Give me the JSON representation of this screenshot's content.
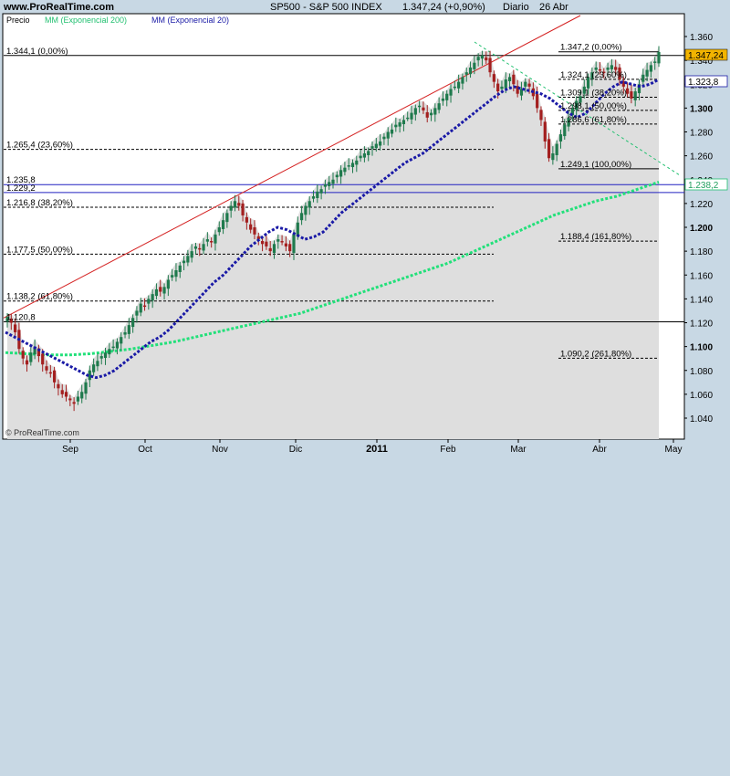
{
  "header": {
    "site": "www.ProRealTime.com",
    "instrument": "SP500 - S&P 500 INDEX",
    "quote": "1.347,24 (+0,90%)",
    "period": "Diario",
    "date": "26 Abr"
  },
  "legend": {
    "price_label": "Precio",
    "ema200_label": "MM (Exponencial 200)",
    "ema20_label": "MM (Exponencial 20)"
  },
  "watermark": "© ProRealTime.com",
  "colors": {
    "up_candle": "#1f7a4d",
    "down_candle": "#a31f1f",
    "ema20": "#1a1aa6",
    "ema200": "#22e07a",
    "trendline": "#d42020",
    "area": "#dedede",
    "page_bg": "#c8d8e4",
    "price_tag_bg": "#f2b400"
  },
  "chart_data": {
    "type": "candlestick",
    "title": "SP500 - S&P 500 INDEX",
    "ylim": [
      1030,
      1370
    ],
    "x_ticks": [
      "Sep",
      "Oct",
      "Nov",
      "Dic",
      "2011",
      "Feb",
      "Mar",
      "Abr",
      "May"
    ],
    "y_ticks": [
      "1.040",
      "1.060",
      "1.080",
      "1.100",
      "1.120",
      "1.140",
      "1.160",
      "1.180",
      "1.200",
      "1.220",
      "1.240",
      "1.260",
      "1.280",
      "1.300",
      "1.320",
      "1.340",
      "1.360"
    ],
    "last_price": 1347.24,
    "last_price_label": "1.347,24",
    "ema20_last_label": "1.323,8",
    "ema200_last_label": "1.238,2",
    "close_series": [
      1125,
      1120,
      1112,
      1098,
      1090,
      1085,
      1095,
      1100,
      1092,
      1085,
      1080,
      1078,
      1070,
      1065,
      1060,
      1058,
      1055,
      1052,
      1058,
      1062,
      1070,
      1080,
      1085,
      1088,
      1092,
      1095,
      1098,
      1100,
      1104,
      1108,
      1112,
      1118,
      1124,
      1130,
      1136,
      1134,
      1140,
      1144,
      1148,
      1146,
      1150,
      1156,
      1160,
      1164,
      1168,
      1172,
      1176,
      1180,
      1184,
      1182,
      1186,
      1190,
      1188,
      1194,
      1200,
      1206,
      1212,
      1218,
      1222,
      1218,
      1210,
      1204,
      1198,
      1194,
      1190,
      1186,
      1184,
      1180,
      1186,
      1190,
      1188,
      1184,
      1180,
      1194,
      1204,
      1212,
      1218,
      1222,
      1226,
      1230,
      1232,
      1236,
      1238,
      1240,
      1244,
      1248,
      1250,
      1252,
      1254,
      1256,
      1260,
      1262,
      1264,
      1268,
      1270,
      1272,
      1276,
      1280,
      1282,
      1286,
      1288,
      1290,
      1292,
      1296,
      1300,
      1302,
      1298,
      1292,
      1296,
      1300,
      1304,
      1308,
      1312,
      1316,
      1318,
      1322,
      1326,
      1330,
      1334,
      1338,
      1343,
      1344,
      1340,
      1330,
      1322,
      1314,
      1318,
      1324,
      1326,
      1320,
      1312,
      1316,
      1322,
      1318,
      1310,
      1300,
      1290,
      1272,
      1258,
      1262,
      1270,
      1278,
      1286,
      1292,
      1300,
      1306,
      1310,
      1318,
      1326,
      1330,
      1334,
      1332,
      1330,
      1334,
      1336,
      1332,
      1324,
      1318,
      1312,
      1308,
      1314,
      1320,
      1328,
      1332,
      1336,
      1339,
      1347
    ],
    "ema20_series": [
      1112,
      1108,
      1104,
      1100,
      1096,
      1092,
      1088,
      1084,
      1080,
      1076,
      1074,
      1076,
      1080,
      1086,
      1092,
      1098,
      1104,
      1108,
      1114,
      1122,
      1130,
      1138,
      1146,
      1154,
      1160,
      1168,
      1176,
      1184,
      1190,
      1196,
      1200,
      1198,
      1194,
      1190,
      1192,
      1196,
      1204,
      1212,
      1218,
      1224,
      1230,
      1236,
      1242,
      1248,
      1254,
      1258,
      1262,
      1268,
      1274,
      1280,
      1286,
      1292,
      1298,
      1304,
      1310,
      1315,
      1318,
      1316,
      1314,
      1312,
      1308,
      1302,
      1296,
      1292,
      1296,
      1304,
      1312,
      1318,
      1322,
      1320,
      1318,
      1320,
      1324
    ],
    "ema200_series": [
      1095,
      1094,
      1093,
      1093,
      1094,
      1096,
      1098,
      1101,
      1104,
      1108,
      1112,
      1116,
      1120,
      1124,
      1128,
      1134,
      1140,
      1146,
      1152,
      1158,
      1164,
      1170,
      1178,
      1186,
      1194,
      1202,
      1210,
      1216,
      1222,
      1226,
      1232,
      1238
    ],
    "fibonacci_left": [
      {
        "label": "1.344,1 (0,00%)",
        "value": 1344.1
      },
      {
        "label": "1.265,4 (23,60%)",
        "value": 1265.4
      },
      {
        "label": "1.235,8",
        "value": 1235.8
      },
      {
        "label": "1.229,2",
        "value": 1229.2
      },
      {
        "label": "1.216,8 (38,20%)",
        "value": 1216.8
      },
      {
        "label": "1.177,5 (50,00%)",
        "value": 1177.5
      },
      {
        "label": "1.138,2 (61,80%)",
        "value": 1138.2
      },
      {
        "label": "1.120,8",
        "value": 1120.8
      }
    ],
    "fibonacci_right": [
      {
        "label": "1.347,2 (0,00%)",
        "value": 1347.2
      },
      {
        "label": "1.324,1 (23,60%)",
        "value": 1324.1
      },
      {
        "label": "1.309,1 (38,20%)",
        "value": 1309.1
      },
      {
        "label": "1.298,1 (50,00%)",
        "value": 1298.1
      },
      {
        "label": "1.286,6 (61,80%)",
        "value": 1286.6
      },
      {
        "label": "1.249,1 (100,00%)",
        "value": 1249.1
      },
      {
        "label": "1.188,4 (161,80%)",
        "value": 1188.4
      },
      {
        "label": "1.090,2 (261,80%)",
        "value": 1090.2
      }
    ]
  }
}
